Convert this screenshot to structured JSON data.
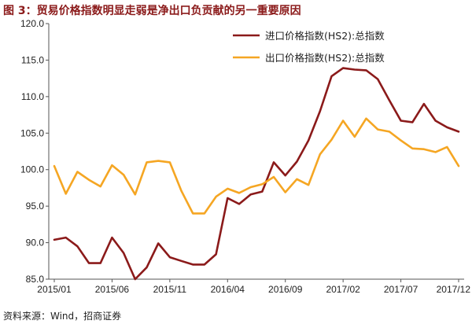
{
  "title": "图 3：贸易价格指数明显走弱是净出口负贡献的另一重要原因",
  "source": "资料来源：Wind，招商证券",
  "chart_data": {
    "type": "line",
    "x": [
      "2015/01",
      "2015/02",
      "2015/03",
      "2015/04",
      "2015/05",
      "2015/06",
      "2015/07",
      "2015/08",
      "2015/09",
      "2015/10",
      "2015/11",
      "2015/12",
      "2016/01",
      "2016/02",
      "2016/03",
      "2016/04",
      "2016/05",
      "2016/06",
      "2016/07",
      "2016/08",
      "2016/09",
      "2016/10",
      "2016/11",
      "2016/12",
      "2017/01",
      "2017/02",
      "2017/03",
      "2017/04",
      "2017/05",
      "2017/06",
      "2017/07",
      "2017/08",
      "2017/09",
      "2017/10",
      "2017/11",
      "2017/12"
    ],
    "x_tick_labels": [
      "2015/01",
      "2015/06",
      "2015/11",
      "2016/04",
      "2016/09",
      "2017/02",
      "2017/07",
      "2017/12"
    ],
    "ylim": [
      85.0,
      120.0
    ],
    "y_ticks": [
      "85.0",
      "90.0",
      "95.0",
      "100.0",
      "105.0",
      "110.0",
      "115.0",
      "120.0"
    ],
    "grid": false,
    "legend_position": "top-right",
    "series": [
      {
        "name": "进口价格指数(HS2):总指数",
        "color": "#8b1a1a",
        "values": [
          90.4,
          90.7,
          89.5,
          87.2,
          87.2,
          90.7,
          88.6,
          85.0,
          86.6,
          89.9,
          88.0,
          87.5,
          87.0,
          87.0,
          88.4,
          96.1,
          95.3,
          96.6,
          97.0,
          101.0,
          99.2,
          101.1,
          104.0,
          108.0,
          112.8,
          113.9,
          113.7,
          113.6,
          112.4,
          109.5,
          106.7,
          106.5,
          109.0,
          106.7,
          105.8,
          105.2
        ]
      },
      {
        "name": "出口价格指数(HS2):总指数",
        "color": "#f5a623",
        "values": [
          100.5,
          96.7,
          99.7,
          98.6,
          97.7,
          100.6,
          99.3,
          96.6,
          101.0,
          101.2,
          101.0,
          97.1,
          94.0,
          94.0,
          96.3,
          97.4,
          96.8,
          97.6,
          98.0,
          99.0,
          96.9,
          98.7,
          97.9,
          102.1,
          104.1,
          106.7,
          104.5,
          107.0,
          105.5,
          105.2,
          104.0,
          102.9,
          102.8,
          102.4,
          103.1,
          100.5
        ]
      }
    ]
  }
}
